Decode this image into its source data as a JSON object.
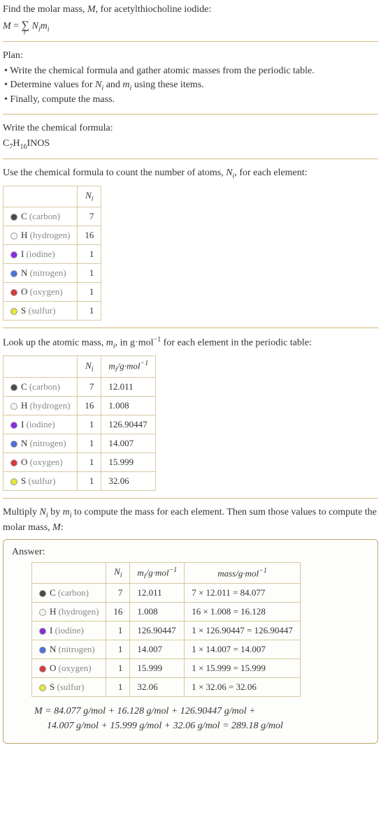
{
  "intro": {
    "line1_a": "Find the molar mass, ",
    "line1_b": ", for acetylthiocholine iodide:",
    "eq_lhs": "M",
    "eq_eq": " = ",
    "eq_sum": "∑",
    "eq_sub": "i",
    "eq_rhs_a": " N",
    "eq_rhs_b": "m"
  },
  "plan": {
    "title": "Plan:",
    "b1_a": "• Write the chemical formula and gather atomic masses from the periodic table.",
    "b2_a": "• Determine values for ",
    "b2_b": " and ",
    "b2_c": " using these items.",
    "b3": "• Finally, compute the mass."
  },
  "writeFormula": {
    "title": "Write the chemical formula:",
    "formula_prefix": "C",
    "c_sub": "7",
    "h": "H",
    "h_sub": "16",
    "suffix": "INOS"
  },
  "countAtoms": {
    "text_a": "Use the chemical formula to count the number of atoms, ",
    "text_b": ", for each element:"
  },
  "massLookup": {
    "text_a": "Look up the atomic mass, ",
    "text_b": ", in g·mol",
    "text_c": " for each element in the periodic table:"
  },
  "multiply": {
    "text_a": "Multiply ",
    "text_b": " by ",
    "text_c": " to compute the mass for each element. Then sum those values to compute the molar mass, ",
    "text_d": ":"
  },
  "answerLabel": "Answer:",
  "headers": {
    "Ni_a": "N",
    "Ni_b": "i",
    "mi_a": "m",
    "mi_b": "i",
    "mi_unit_a": "/g·mol",
    "mi_unit_b": "−1",
    "mass_a": "mass/g·mol",
    "mass_b": "−1"
  },
  "elements": [
    {
      "sym": "C",
      "name": "(carbon)",
      "color": "#4a4a4a",
      "n": "7",
      "m": "12.011",
      "prod": "7 × 12.011 = 84.077"
    },
    {
      "sym": "H",
      "name": "(hydrogen)",
      "color": "#f5f5f5",
      "n": "16",
      "m": "1.008",
      "prod": "16 × 1.008 = 16.128"
    },
    {
      "sym": "I",
      "name": "(iodine)",
      "color": "#8a2be2",
      "n": "1",
      "m": "126.90447",
      "prod": "1 × 126.90447 = 126.90447"
    },
    {
      "sym": "N",
      "name": "(nitrogen)",
      "color": "#4f6fd8",
      "n": "1",
      "m": "14.007",
      "prod": "1 × 14.007 = 14.007"
    },
    {
      "sym": "O",
      "name": "(oxygen)",
      "color": "#d93a3a",
      "n": "1",
      "m": "15.999",
      "prod": "1 × 15.999 = 15.999"
    },
    {
      "sym": "S",
      "name": "(sulfur)",
      "color": "#e6e63a",
      "n": "1",
      "m": "32.06",
      "prod": "1 × 32.06 = 32.06"
    }
  ],
  "final": {
    "line1": "M = 84.077 g/mol + 16.128 g/mol + 126.90447 g/mol + ",
    "line2": "14.007 g/mol + 15.999 g/mol + 32.06 g/mol = 289.18 g/mol"
  }
}
